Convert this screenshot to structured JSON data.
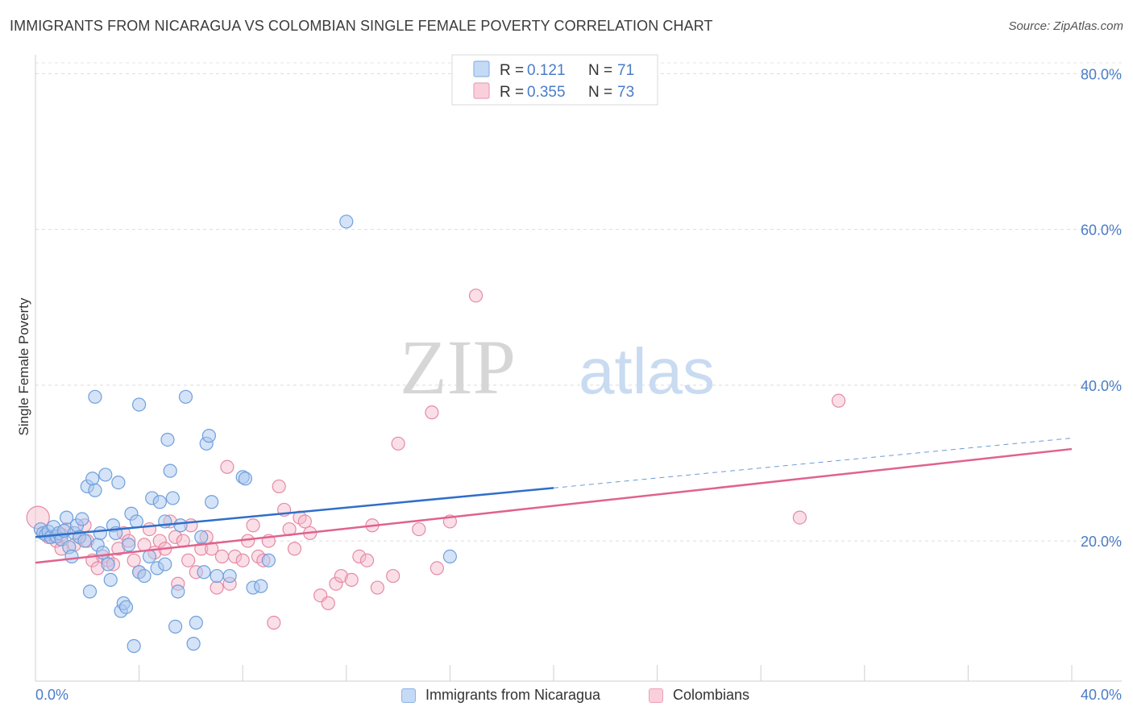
{
  "header": {
    "title": "IMMIGRANTS FROM NICARAGUA VS COLOMBIAN SINGLE FEMALE POVERTY CORRELATION CHART",
    "source": "Source: ZipAtlas.com"
  },
  "watermark": {
    "part1": "ZIP",
    "part2": "atlas"
  },
  "colors": {
    "blue_fill": "#a9c8ef",
    "blue_stroke": "#6f9fdc",
    "blue_line": "#2f6fc9",
    "pink_fill": "#f4b8c9",
    "pink_stroke": "#e58aa6",
    "pink_line": "#e0628e",
    "tick_text": "#4a7cc7"
  },
  "chart_data": {
    "type": "scatter",
    "title": "IMMIGRANTS FROM NICARAGUA VS COLOMBIAN SINGLE FEMALE POVERTY CORRELATION CHART",
    "xlabel": "",
    "ylabel": "Single Female Poverty",
    "xlim": [
      0,
      40
    ],
    "ylim": [
      2,
      82
    ],
    "x_tick_labels": [
      "0.0%",
      "40.0%"
    ],
    "y_ticks": [
      20,
      40,
      60,
      80
    ],
    "y_tick_labels": [
      "20.0%",
      "40.0%",
      "60.0%",
      "80.0%"
    ],
    "grid": true,
    "legend": {
      "placement": "top-center",
      "entries": [
        {
          "r_label": "R =",
          "r_value": "0.121",
          "n_label": "N =",
          "n_value": "71"
        },
        {
          "r_label": "R =",
          "r_value": "0.355",
          "n_label": "N =",
          "n_value": "73"
        }
      ]
    },
    "series": [
      {
        "name": "Immigrants from Nicaragua",
        "color": "blue",
        "trend": {
          "x0": 0,
          "y0": 20.5,
          "x1": 20,
          "y1": 26.8,
          "dash_to_x": 40,
          "dash_to_y": 33.2
        },
        "points": [
          [
            0.2,
            21.5
          ],
          [
            0.3,
            21.0
          ],
          [
            0.4,
            20.8
          ],
          [
            0.5,
            21.2
          ],
          [
            0.6,
            20.5
          ],
          [
            0.7,
            21.8
          ],
          [
            0.8,
            20.6
          ],
          [
            0.9,
            21.0
          ],
          [
            1.0,
            20.2
          ],
          [
            1.1,
            21.3
          ],
          [
            1.2,
            23.0
          ],
          [
            1.3,
            19.2
          ],
          [
            1.4,
            18.0
          ],
          [
            1.5,
            21.0
          ],
          [
            1.6,
            22.0
          ],
          [
            1.7,
            20.5
          ],
          [
            1.8,
            22.8
          ],
          [
            1.9,
            20.0
          ],
          [
            2.0,
            27.0
          ],
          [
            2.1,
            13.5
          ],
          [
            2.2,
            28.0
          ],
          [
            2.3,
            26.5
          ],
          [
            2.4,
            19.5
          ],
          [
            2.5,
            21.0
          ],
          [
            2.3,
            38.5
          ],
          [
            2.6,
            18.5
          ],
          [
            2.7,
            28.5
          ],
          [
            2.8,
            17.0
          ],
          [
            2.9,
            15.0
          ],
          [
            3.0,
            22.0
          ],
          [
            3.1,
            21.0
          ],
          [
            3.2,
            27.5
          ],
          [
            3.3,
            11.0
          ],
          [
            3.4,
            12.0
          ],
          [
            3.5,
            11.5
          ],
          [
            3.6,
            19.5
          ],
          [
            3.7,
            23.5
          ],
          [
            3.8,
            6.5
          ],
          [
            3.9,
            22.5
          ],
          [
            4.0,
            16.0
          ],
          [
            4.0,
            37.5
          ],
          [
            4.2,
            15.5
          ],
          [
            4.4,
            18.0
          ],
          [
            4.5,
            25.5
          ],
          [
            4.7,
            16.5
          ],
          [
            4.8,
            25.0
          ],
          [
            5.0,
            17.0
          ],
          [
            5.0,
            22.5
          ],
          [
            5.1,
            33.0
          ],
          [
            5.2,
            29.0
          ],
          [
            5.3,
            25.5
          ],
          [
            5.4,
            9.0
          ],
          [
            5.5,
            13.5
          ],
          [
            5.6,
            22.0
          ],
          [
            5.8,
            38.5
          ],
          [
            6.1,
            6.8
          ],
          [
            6.2,
            9.5
          ],
          [
            6.4,
            20.5
          ],
          [
            6.5,
            16.0
          ],
          [
            6.6,
            32.5
          ],
          [
            6.7,
            33.5
          ],
          [
            6.8,
            25.0
          ],
          [
            7.0,
            15.5
          ],
          [
            7.5,
            15.5
          ],
          [
            8.0,
            28.2
          ],
          [
            8.1,
            28.0
          ],
          [
            8.4,
            14.0
          ],
          [
            8.7,
            14.2
          ],
          [
            9.0,
            17.5
          ],
          [
            12.0,
            61.0
          ],
          [
            16.0,
            18.0
          ]
        ]
      },
      {
        "name": "Colombians",
        "color": "pink",
        "trend": {
          "x0": 0,
          "y0": 17.2,
          "x1": 40,
          "y1": 31.8
        },
        "points": [
          [
            0.1,
            23.0
          ],
          [
            0.3,
            21.0
          ],
          [
            0.5,
            20.5
          ],
          [
            0.8,
            20.0
          ],
          [
            1.0,
            19.0
          ],
          [
            1.2,
            21.5
          ],
          [
            1.5,
            19.5
          ],
          [
            1.7,
            20.5
          ],
          [
            1.9,
            22.0
          ],
          [
            2.0,
            20.0
          ],
          [
            2.2,
            17.5
          ],
          [
            2.4,
            16.5
          ],
          [
            2.6,
            18.0
          ],
          [
            2.8,
            17.5
          ],
          [
            3.0,
            17.0
          ],
          [
            3.2,
            19.0
          ],
          [
            3.4,
            21.0
          ],
          [
            3.6,
            20.0
          ],
          [
            3.8,
            17.5
          ],
          [
            4.0,
            16.0
          ],
          [
            4.2,
            19.5
          ],
          [
            4.4,
            21.5
          ],
          [
            4.6,
            18.5
          ],
          [
            4.8,
            20.0
          ],
          [
            5.0,
            19.0
          ],
          [
            5.2,
            22.5
          ],
          [
            5.4,
            20.5
          ],
          [
            5.5,
            14.5
          ],
          [
            5.7,
            20.0
          ],
          [
            5.9,
            17.5
          ],
          [
            6.0,
            22.0
          ],
          [
            6.2,
            16.0
          ],
          [
            6.4,
            19.0
          ],
          [
            6.6,
            20.5
          ],
          [
            6.8,
            19.0
          ],
          [
            7.0,
            14.0
          ],
          [
            7.2,
            18.0
          ],
          [
            7.4,
            29.5
          ],
          [
            7.5,
            14.5
          ],
          [
            7.7,
            18.0
          ],
          [
            8.0,
            17.5
          ],
          [
            8.2,
            20.0
          ],
          [
            8.4,
            22.0
          ],
          [
            8.6,
            18.0
          ],
          [
            8.8,
            17.5
          ],
          [
            9.0,
            20.0
          ],
          [
            9.2,
            9.5
          ],
          [
            9.4,
            27.0
          ],
          [
            9.6,
            24.0
          ],
          [
            9.8,
            21.5
          ],
          [
            10.0,
            19.0
          ],
          [
            10.2,
            23.0
          ],
          [
            10.4,
            22.5
          ],
          [
            10.6,
            21.0
          ],
          [
            11.0,
            13.0
          ],
          [
            11.3,
            12.0
          ],
          [
            11.6,
            14.5
          ],
          [
            11.8,
            15.5
          ],
          [
            12.2,
            15.0
          ],
          [
            12.5,
            18.0
          ],
          [
            12.8,
            17.5
          ],
          [
            13.0,
            22.0
          ],
          [
            13.2,
            14.0
          ],
          [
            13.8,
            15.5
          ],
          [
            14.0,
            32.5
          ],
          [
            14.8,
            21.5
          ],
          [
            15.3,
            36.5
          ],
          [
            15.5,
            16.5
          ],
          [
            16.0,
            22.5
          ],
          [
            17.0,
            51.5
          ],
          [
            29.5,
            23.0
          ],
          [
            31.0,
            38.0
          ],
          [
            1.0,
            20.8
          ]
        ]
      }
    ]
  },
  "bottom_legend": {
    "items": [
      {
        "label": "Immigrants from Nicaragua"
      },
      {
        "label": "Colombians"
      }
    ]
  }
}
